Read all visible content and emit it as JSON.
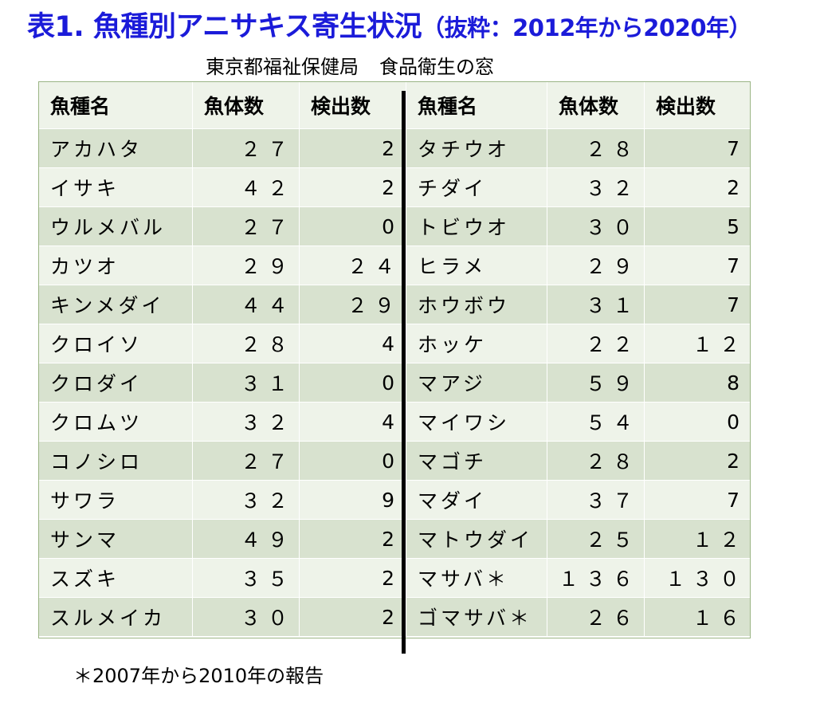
{
  "title": {
    "main": "表1. 魚種別アニサキス寄生状況",
    "paren": "（抜粋：2012年から2020年）"
  },
  "source": {
    "org": "東京都福祉保健局",
    "page": "食品衛生の窓"
  },
  "table": {
    "headers": [
      "魚種名",
      "魚体数",
      "検出数",
      "魚種名",
      "魚体数",
      "検出数"
    ],
    "rows": [
      {
        "l_name": "アカハタ",
        "l_count": "２７",
        "l_detect": "2",
        "r_name": "タチウオ",
        "r_count": "２８",
        "r_detect": "7"
      },
      {
        "l_name": "イサキ",
        "l_count": "４２",
        "l_detect": "2",
        "r_name": "チダイ",
        "r_count": "３２",
        "r_detect": "2"
      },
      {
        "l_name": "ウルメバル",
        "l_count": "２７",
        "l_detect": "0",
        "r_name": "トビウオ",
        "r_count": "３０",
        "r_detect": "5"
      },
      {
        "l_name": "カツオ",
        "l_count": "２９",
        "l_detect": "２４",
        "r_name": "ヒラメ",
        "r_count": "２９",
        "r_detect": "7"
      },
      {
        "l_name": "キンメダイ",
        "l_count": "４４",
        "l_detect": "２９",
        "r_name": "ホウボウ",
        "r_count": "３１",
        "r_detect": "7"
      },
      {
        "l_name": "クロイソ",
        "l_count": "２８",
        "l_detect": "4",
        "r_name": "ホッケ",
        "r_count": "２２",
        "r_detect": "１２"
      },
      {
        "l_name": "クロダイ",
        "l_count": "３１",
        "l_detect": "0",
        "r_name": "マアジ",
        "r_count": "５９",
        "r_detect": "8"
      },
      {
        "l_name": "クロムツ",
        "l_count": "３２",
        "l_detect": "4",
        "r_name": "マイワシ",
        "r_count": "５４",
        "r_detect": "0"
      },
      {
        "l_name": "コノシロ",
        "l_count": "２７",
        "l_detect": "0",
        "r_name": "マゴチ",
        "r_count": "２８",
        "r_detect": "2"
      },
      {
        "l_name": "サワラ",
        "l_count": "３２",
        "l_detect": "9",
        "r_name": "マダイ",
        "r_count": "３７",
        "r_detect": "7"
      },
      {
        "l_name": "サンマ",
        "l_count": "４９",
        "l_detect": "2",
        "r_name": "マトウダイ",
        "r_count": "２５",
        "r_detect": "１２"
      },
      {
        "l_name": "スズキ",
        "l_count": "３５",
        "l_detect": "2",
        "r_name": "マサバ＊",
        "r_count": "１３６",
        "r_detect": "１３０"
      },
      {
        "l_name": "スルメイカ",
        "l_count": "３０",
        "l_detect": "2",
        "r_name": "ゴマサバ＊",
        "r_count": "２６",
        "r_detect": "１６"
      }
    ]
  },
  "footnote": "＊2007年から2010年の報告"
}
